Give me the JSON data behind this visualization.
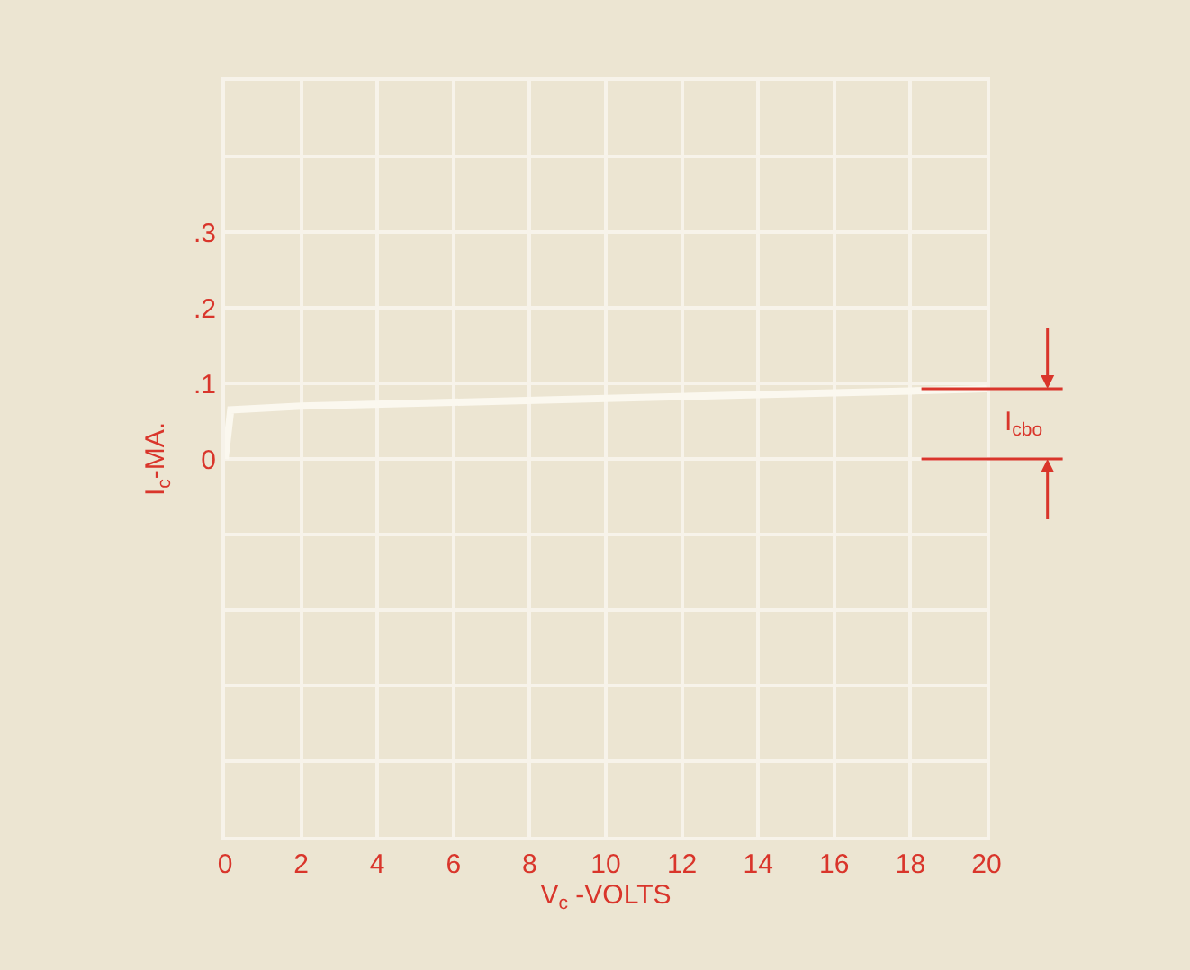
{
  "chart_data": {
    "type": "line",
    "xlabel": "V$_{c}$ -VOLTS",
    "ylabel": "I$_{c}$-MA.",
    "x": [
      0,
      0.15,
      2,
      6,
      10,
      14,
      18,
      20
    ],
    "series": [
      {
        "color": "#fbf8ef",
        "values": [
          0,
          0.065,
          0.07,
          0.075,
          0.08,
          0.085,
          0.09,
          0.093
        ]
      }
    ],
    "xlim": [
      0,
      20
    ],
    "xticks": [
      0,
      2,
      4,
      6,
      8,
      10,
      12,
      14,
      16,
      18,
      20
    ],
    "ylim": [
      -0.5,
      0.5
    ],
    "yticks": [
      {
        "value": -0.5,
        "label": null
      },
      {
        "value": -0.4,
        "label": null
      },
      {
        "value": -0.3,
        "label": null
      },
      {
        "value": -0.2,
        "label": null
      },
      {
        "value": -0.1,
        "label": null
      },
      {
        "value": 0,
        "label": "0"
      },
      {
        "value": 0.1,
        "label": ".1"
      },
      {
        "value": 0.2,
        "label": ".2"
      },
      {
        "value": 0.3,
        "label": ".3"
      },
      {
        "value": 0.4,
        "label": null
      },
      {
        "value": 0.5,
        "label": null
      }
    ],
    "grid": true,
    "marker": "none",
    "line_style": "solid",
    "annotations": [
      "I$_{cbo}$"
    ]
  }
}
